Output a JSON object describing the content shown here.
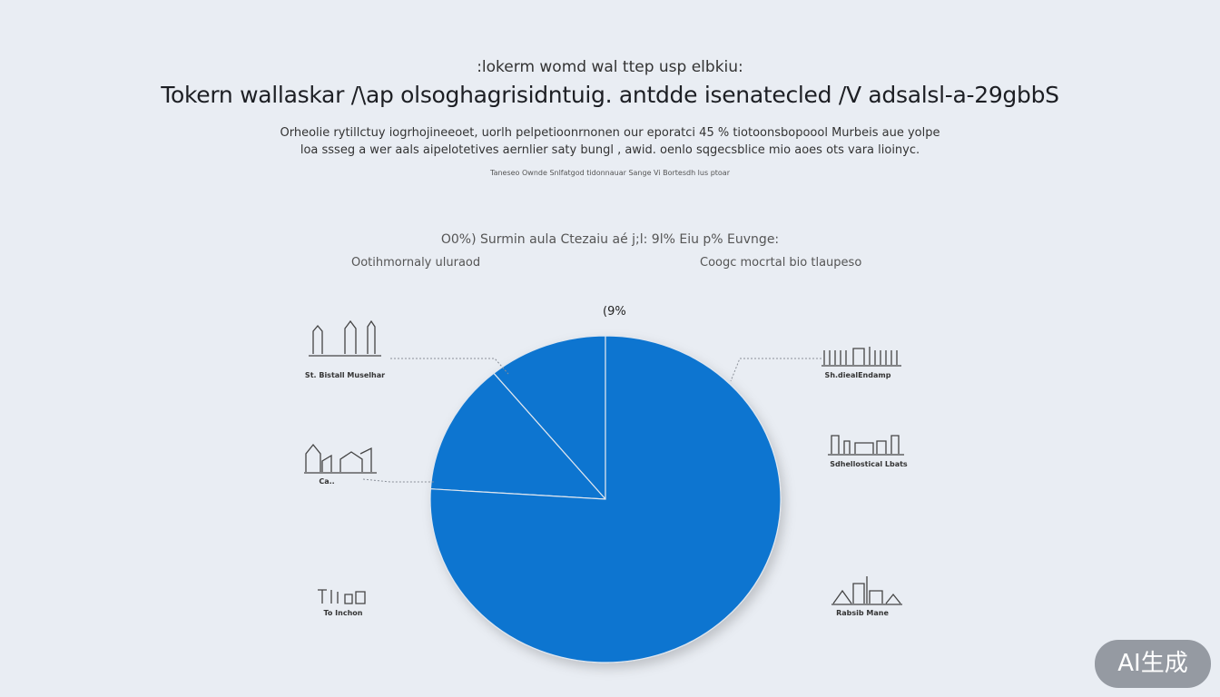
{
  "header": {
    "kicker": ":lokerm womd wal ttep usp elbkiu:",
    "title": "Tokern wallaskar /\\ap olsoghagrisidntuig. antdde isenatecled /V adsalsl-a-29gbbS",
    "description_line1": "Orheolie rytillctuy iogrhojineeoet, uorlh pelpetioonrnonen our eporatci 45 % tiotoonsbopoool  Murbeis aue  yolpe",
    "description_line2": "loa ssseg a wer aals aipelotetives aernlier saty bungl , awid. oenlo sqgecsblice mio aoes ots vara lioinyc.",
    "source": "Taneseo Ownde Snlfatgod tidonnauar Sange  Vi Bortesdh lus ptoar"
  },
  "chart_data": {
    "type": "pie",
    "title": "O0%) Surmin aula Ctezaiu aé j;l: 9l% Eiu p% Euvnge:",
    "left_heading": "Ootihmornaly uluraod",
    "right_heading": "Coogc mocrtal bio tlaupeso",
    "slice_label": "(9%",
    "slices": [
      {
        "value": 11,
        "color": "#0a74d0"
      },
      {
        "value": 13,
        "color": "#0a74d0"
      },
      {
        "value": 76,
        "color": "#0a74d0"
      }
    ],
    "slice_color": "#0a74d0",
    "annotations_left": [
      "St. Bistall Muselhar",
      "Ca..",
      "To Inchon"
    ],
    "annotations_right": [
      "Sh.diealEndamp",
      "Sdhellostical Lbats",
      "Rabsib Mane"
    ],
    "icons": [
      "cathedral-icon",
      "factory-icon",
      "text-logo-icon",
      "fence-building-icon",
      "skyline-icon",
      "industrial-icon"
    ]
  },
  "watermark": {
    "label": "AI生成"
  }
}
